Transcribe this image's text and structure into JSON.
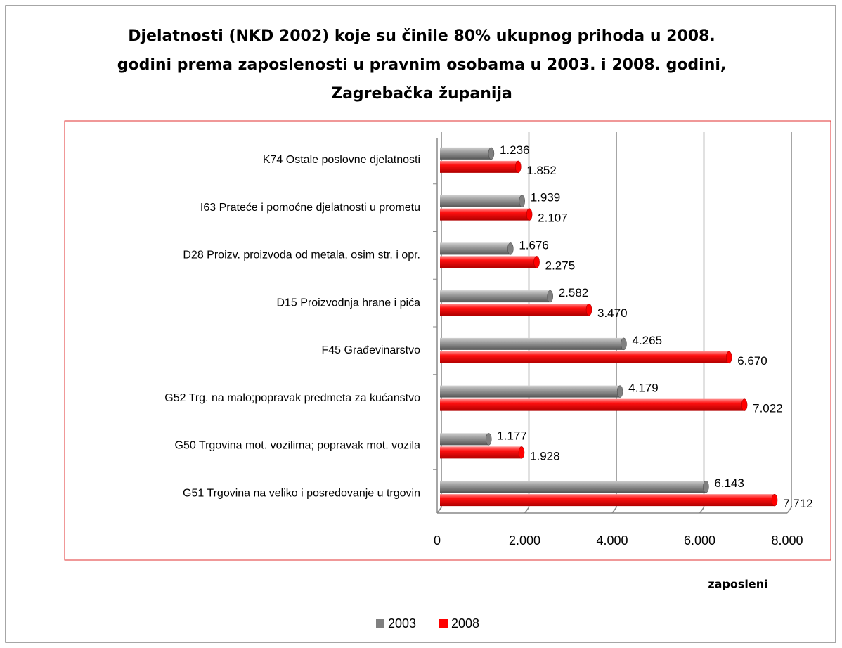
{
  "chart_data": {
    "type": "bar",
    "orientation": "horizontal",
    "title": [
      "Djelatnosti (NKD 2002) koje su činile 80% ukupnog prihoda u 2008.",
      "godini prema zaposlenosti u pravnim osobama u 2003. i 2008. godini,",
      "Zagrebačka županija"
    ],
    "x_label": "zaposleni",
    "categories": [
      "K74 Ostale poslovne djelatnosti",
      "I63 Prateće i pomoćne djelatnosti u prometu",
      "D28 Proizv. proizvoda od metala, osim str. i opr.",
      "D15 Proizvodnja hrane i pića",
      "F45 Građevinarstvo",
      "G52 Trg. na malo;popravak predmeta za kućanstvo",
      "G50 Trgovina mot. vozilima; popravak mot. vozila",
      "G51 Trgovina na veliko i posredovanje u trgovin"
    ],
    "series": [
      {
        "name": "2003",
        "color": "#808080",
        "values": [
          1236,
          1939,
          1676,
          2582,
          4265,
          4179,
          1177,
          6143
        ],
        "value_labels": [
          "1.236",
          "1.939",
          "1.676",
          "2.582",
          "4.265",
          "4.179",
          "1.177",
          "6.143"
        ]
      },
      {
        "name": "2008",
        "color": "#ff0000",
        "values": [
          1852,
          2107,
          2275,
          3470,
          6670,
          7022,
          1928,
          7712
        ],
        "value_labels": [
          "1.852",
          "2.107",
          "2.275",
          "3.470",
          "6.670",
          "7.022",
          "1.928",
          "7.712"
        ]
      }
    ],
    "xlim": [
      0,
      8000
    ],
    "xticks": [
      0,
      {
        "value": 2000,
        "label": "2.000"
      },
      {
        "value": 4000,
        "label": "4.000"
      },
      {
        "value": 6000,
        "label": "6.000"
      },
      {
        "value": 8000,
        "label": "8.000"
      }
    ],
    "grid": true,
    "legend": "bottom"
  }
}
